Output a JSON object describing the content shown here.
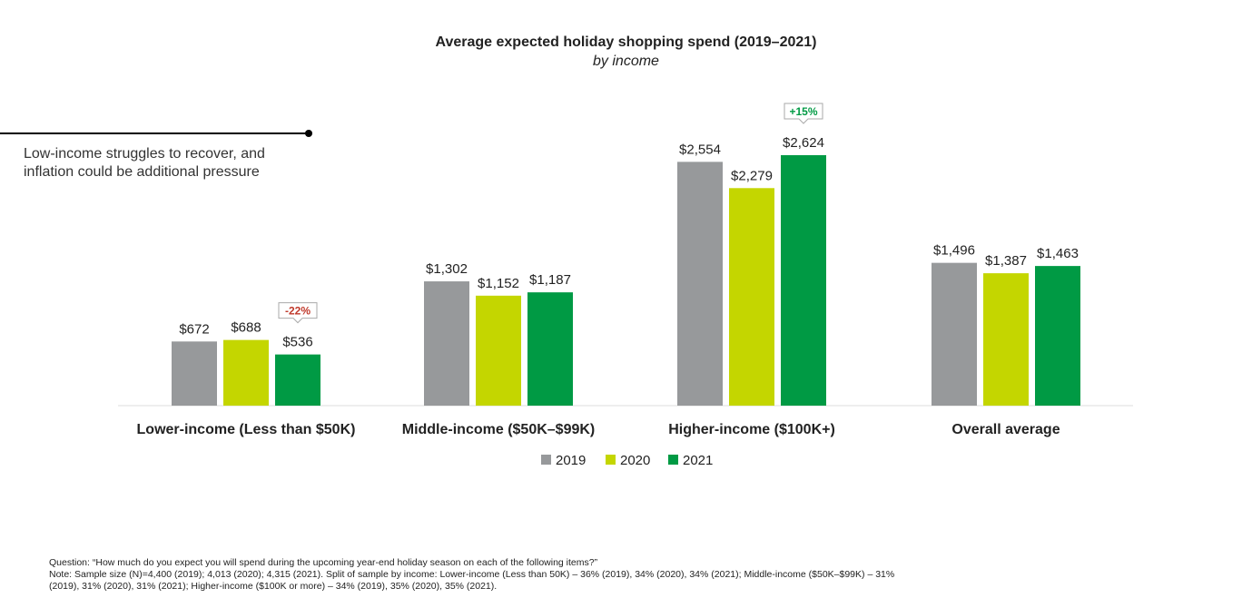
{
  "chart_data": {
    "type": "bar",
    "title": "Average expected holiday shopping spend (2019–2021)",
    "subtitle": "by income",
    "categories": [
      "Lower-income (Less than $50K)",
      "Middle-income ($50K–$99K)",
      "Higher-income ($100K+)",
      "Overall average"
    ],
    "series": [
      {
        "name": "2019",
        "color": "#97999b",
        "values": [
          672,
          1302,
          2554,
          1496
        ],
        "labels": [
          "$672",
          "$1,302",
          "$2,554",
          "$1,496"
        ]
      },
      {
        "name": "2020",
        "color": "#c4d600",
        "values": [
          688,
          1152,
          2279,
          1387
        ],
        "labels": [
          "$688",
          "$1,152",
          "$2,279",
          "$1,387"
        ]
      },
      {
        "name": "2021",
        "color": "#009a44",
        "values": [
          536,
          1187,
          2624,
          1463
        ],
        "labels": [
          "$536",
          "$1,187",
          "$2,624",
          "$1,463"
        ]
      }
    ],
    "annotations": [
      {
        "text": "-22%",
        "category": 0,
        "series": 2,
        "color": "#c0392b"
      },
      {
        "text": "+15%",
        "category": 2,
        "series": 2,
        "color": "#009a44"
      }
    ],
    "legend_placement": "bottom",
    "grid": false,
    "ylim": [
      0,
      2624
    ]
  },
  "callout": "Low-income struggles to recover, and inflation could be additional pressure",
  "notes": {
    "question": "Question: “How much do you expect you will spend during the upcoming year-end holiday season on each of the following items?”",
    "note": "Note: Sample size (N)=4,400 (2019); 4,013 (2020); 4,315 (2021). Split of sample by income: Lower-income (Less than 50K) – 36% (2019), 34% (2020), 34% (2021); Middle-income ($50K–$99K) – 31% (2019), 31% (2020), 31% (2021); Higher-income ($100K or more) – 34% (2019), 35% (2020), 35% (2021)."
  }
}
